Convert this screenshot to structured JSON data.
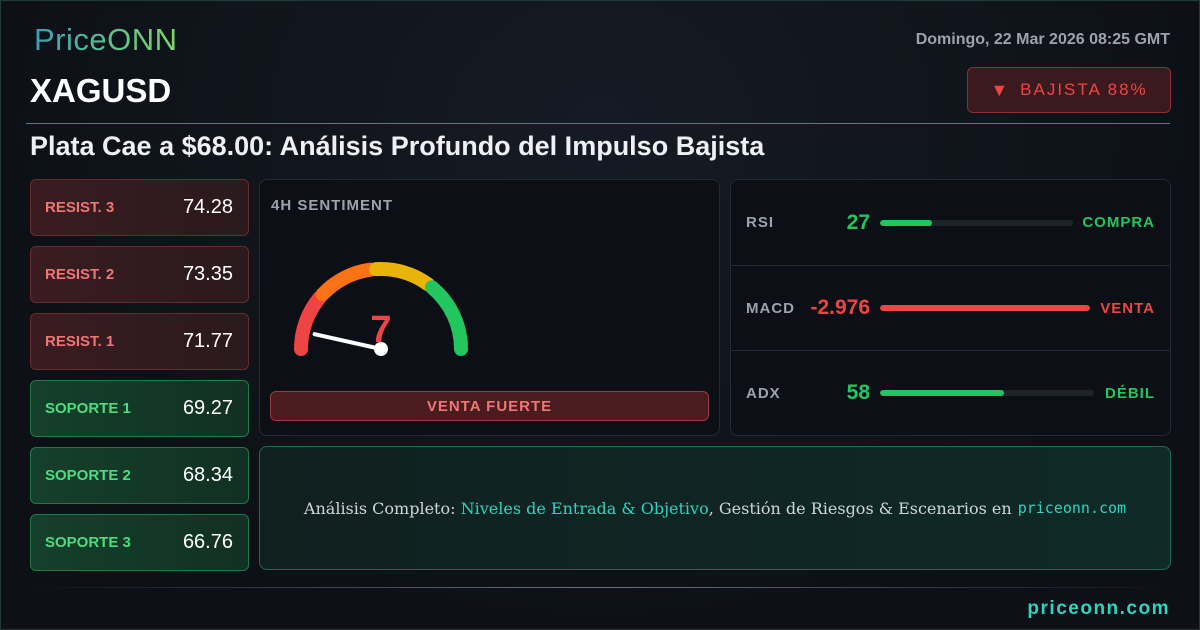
{
  "brand": {
    "logo": "PriceONN",
    "footer_site": "priceonn.com"
  },
  "header": {
    "symbol": "XAGUSD",
    "date": "Domingo, 22 Mar 2026 08:25 GMT",
    "bias_icon": "triangle-down-icon",
    "bias": "BAJISTA 88%"
  },
  "title": "Plata Cae a $68.00: Análisis Profundo del Impulso Bajista",
  "levels": [
    {
      "label": "RESIST. 3",
      "value": "74.28",
      "type": "res"
    },
    {
      "label": "RESIST. 2",
      "value": "73.35",
      "type": "res"
    },
    {
      "label": "RESIST. 1",
      "value": "71.77",
      "type": "res"
    },
    {
      "label": "SOPORTE 1",
      "value": "69.27",
      "type": "sup"
    },
    {
      "label": "SOPORTE 2",
      "value": "68.34",
      "type": "sup"
    },
    {
      "label": "SOPORTE 3",
      "value": "66.76",
      "type": "sup"
    }
  ],
  "sentiment": {
    "heading": "4H SENTIMENT",
    "value": "7",
    "gauge_max": 100,
    "verdict": "VENTA FUERTE"
  },
  "indicators": [
    {
      "name": "RSI",
      "value": "27",
      "fill_pct": 27,
      "signal": "COMPRA",
      "color": "#22c55e"
    },
    {
      "name": "MACD",
      "value": "-2.976",
      "fill_pct": 100,
      "signal": "VENTA",
      "color": "#ef4444"
    },
    {
      "name": "ADX",
      "value": "58",
      "fill_pct": 58,
      "signal": "DÉBIL",
      "color": "#22c55e"
    }
  ],
  "cta": {
    "prefix": "Análisis Completo: ",
    "highlight": "Niveles de Entrada & Objetivo",
    "suffix": ", Gestión de Riesgos & Escenarios en",
    "site": "priceonn.com"
  },
  "colors": {
    "bearish": "#ef4444",
    "bullish": "#22c55e",
    "accent": "#2dd4bf"
  }
}
